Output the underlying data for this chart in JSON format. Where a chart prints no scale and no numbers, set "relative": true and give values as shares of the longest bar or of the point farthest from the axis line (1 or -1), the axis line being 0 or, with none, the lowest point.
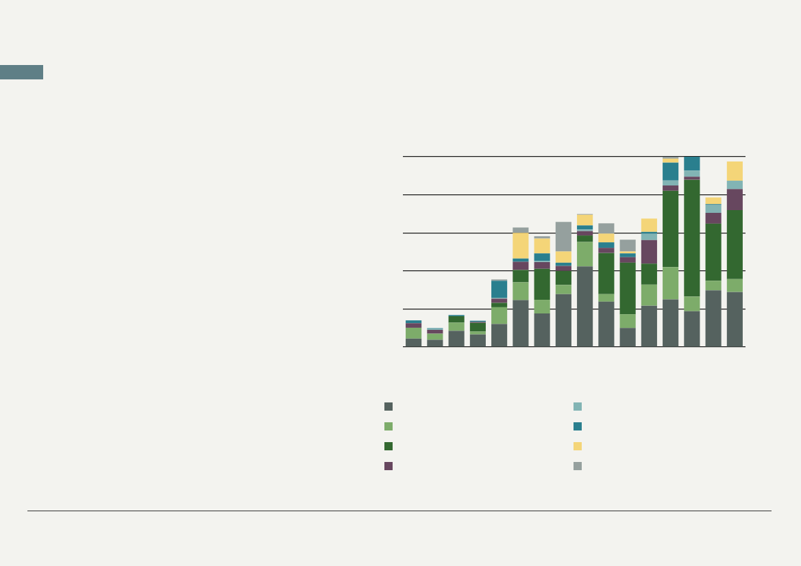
{
  "chart_data": {
    "type": "bar",
    "stacked": true,
    "relative": true,
    "grid": "y",
    "categories": [
      null,
      null,
      null,
      null,
      null,
      null,
      null,
      null,
      null,
      null,
      null,
      null,
      null,
      null,
      null,
      null
    ],
    "series": [
      {
        "color": "#55625f",
        "values": [
          0.044,
          0.038,
          0.085,
          0.066,
          0.121,
          0.246,
          0.176,
          0.278,
          0.424,
          0.238,
          0.1,
          0.217,
          0.25,
          0.188,
          0.298,
          0.289
        ]
      },
      {
        "color": "#7dac6a",
        "values": [
          0.057,
          0.032,
          0.043,
          0.015,
          0.088,
          0.094,
          0.072,
          0.048,
          0.128,
          0.04,
          0.072,
          0.111,
          0.17,
          0.077,
          0.05,
          0.068
        ]
      },
      {
        "color": "#336830",
        "values": [
          0,
          0,
          0.034,
          0.046,
          0.023,
          0.065,
          0.163,
          0.074,
          0.034,
          0.216,
          0.271,
          0.11,
          0.401,
          0.614,
          0.3,
          0.362
        ]
      },
      {
        "color": "#67475f",
        "values": [
          0.024,
          0.02,
          0,
          0.005,
          0.022,
          0.043,
          0.035,
          0.026,
          0.023,
          0.027,
          0.029,
          0.124,
          0.028,
          0.016,
          0.057,
          0.111
        ]
      },
      {
        "color": "#82b4b4",
        "values": [
          0,
          0.005,
          0,
          0,
          0.005,
          0,
          0.006,
          0,
          0.009,
          0,
          0,
          0.033,
          0.026,
          0.032,
          0.041,
          0.044
        ]
      },
      {
        "color": "#2a7f8e",
        "values": [
          0.015,
          0.004,
          0.006,
          0.006,
          0.089,
          0.017,
          0.04,
          0.017,
          0.021,
          0.029,
          0.02,
          0.01,
          0.094,
          0.073,
          0.005,
          0
        ]
      },
      {
        "color": "#f4d578",
        "values": [
          0,
          0,
          0,
          0,
          0,
          0.135,
          0.078,
          0.059,
          0.056,
          0.046,
          0.01,
          0.07,
          0.021,
          0,
          0.035,
          0.101
        ]
      },
      {
        "color": "#95a09e",
        "values": [
          0,
          0,
          0,
          0,
          0.007,
          0.028,
          0.012,
          0.155,
          0.004,
          0.054,
          0.062,
          0,
          0.01,
          0,
          0,
          0
        ]
      }
    ]
  }
}
